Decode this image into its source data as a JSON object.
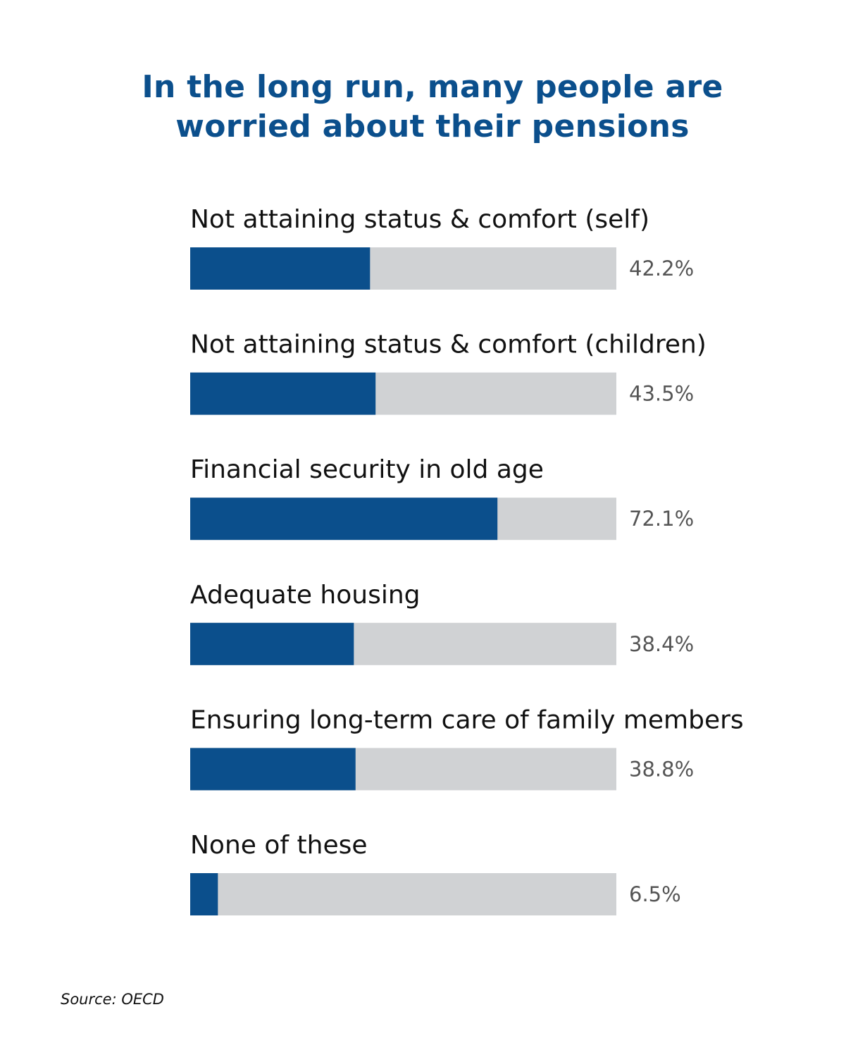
{
  "title_lines": [
    "In the long run, many people are",
    "worried about their pensions"
  ],
  "source": "Source: OECD",
  "colors": {
    "title": "#0b4f8c",
    "bar_fill": "#0b4f8c",
    "bar_track": "#d0d2d4",
    "category_text": "#111111",
    "value_text": "#555555"
  },
  "chart_data": {
    "type": "bar",
    "orientation": "horizontal",
    "title": "In the long run, many people are worried about their pensions",
    "categories": [
      "Not attaining status & comfort (self)",
      "Not attaining status & comfort (children)",
      "Financial security in old age",
      "Adequate housing",
      "Ensuring long-term care of family members",
      "None of these"
    ],
    "values": [
      42.2,
      43.5,
      72.1,
      38.4,
      38.8,
      6.5
    ],
    "value_labels": [
      "42.2%",
      "43.5%",
      "72.1%",
      "38.4%",
      "38.8%",
      "6.5%"
    ],
    "xlim": [
      0,
      100
    ],
    "xlabel": "",
    "ylabel": "",
    "grid": false,
    "legend": "none"
  }
}
